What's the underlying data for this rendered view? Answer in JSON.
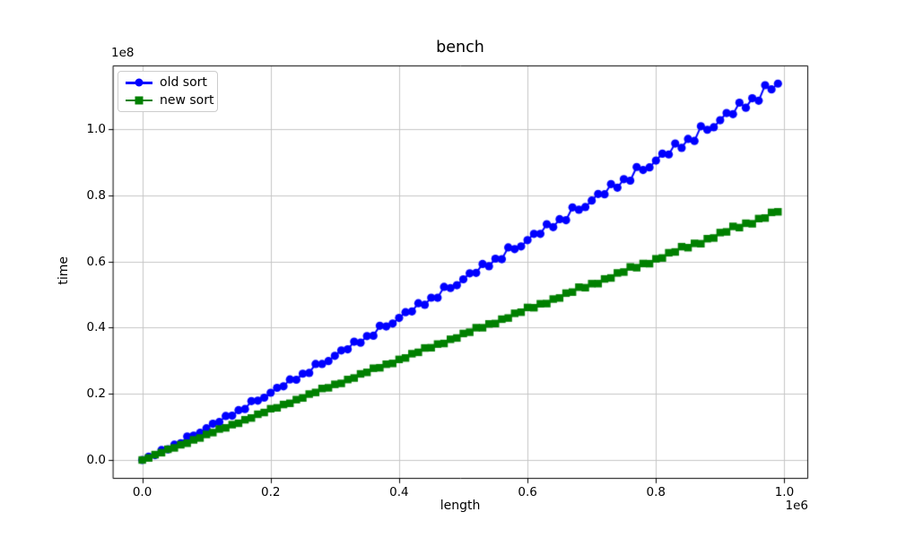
{
  "figure": {
    "title": "bench",
    "xlabel": "length",
    "ylabel": "time",
    "x_offset_label": "1e6",
    "y_offset_label": "1e8",
    "background_color": "#ffffff",
    "grid_color": "#c6c6c6",
    "spine_color": "#000000"
  },
  "legend": {
    "position": "upper left",
    "items": [
      {
        "label": "old sort",
        "color": "#0000ff",
        "marker": "circle"
      },
      {
        "label": "new sort",
        "color": "#008000",
        "marker": "square"
      }
    ]
  },
  "chart_data": {
    "type": "line",
    "title": "bench",
    "xlabel": "length",
    "ylabel": "time",
    "grid": true,
    "legend_position": "upper left",
    "x_scale": 1000000,
    "y_scale": 100000000,
    "xlim": [
      -0.0455,
      1.0357
    ],
    "ylim": [
      -0.0542,
      1.1924
    ],
    "x_ticks": [
      0.0,
      0.2,
      0.4,
      0.6,
      0.8,
      1.0
    ],
    "x_tick_labels": [
      "0.0",
      "0.2",
      "0.4",
      "0.6",
      "0.8",
      "1.0"
    ],
    "y_ticks": [
      0.0,
      0.2,
      0.4,
      0.6,
      0.8,
      1.0
    ],
    "y_tick_labels": [
      "0.0",
      "0.2",
      "0.4",
      "0.6",
      "0.8",
      "1.0"
    ],
    "x": [
      0.0,
      0.01,
      0.02,
      0.03,
      0.04,
      0.05,
      0.06,
      0.07,
      0.08,
      0.09,
      0.1,
      0.11,
      0.12,
      0.13,
      0.14,
      0.15,
      0.16,
      0.17,
      0.18,
      0.19,
      0.2,
      0.21,
      0.22,
      0.23,
      0.24,
      0.25,
      0.26,
      0.27,
      0.28,
      0.29,
      0.3,
      0.31,
      0.32,
      0.33,
      0.34,
      0.35,
      0.36,
      0.37,
      0.38,
      0.39,
      0.4,
      0.41,
      0.42,
      0.43,
      0.44,
      0.45,
      0.46,
      0.47,
      0.48,
      0.49,
      0.5,
      0.51,
      0.52,
      0.53,
      0.54,
      0.55,
      0.56,
      0.57,
      0.58,
      0.59,
      0.6,
      0.61,
      0.62,
      0.63,
      0.64,
      0.65,
      0.66,
      0.67,
      0.68,
      0.69,
      0.7,
      0.71,
      0.72,
      0.73,
      0.74,
      0.75,
      0.76,
      0.77,
      0.78,
      0.79,
      0.8,
      0.81,
      0.82,
      0.83,
      0.84,
      0.85,
      0.86,
      0.87,
      0.88,
      0.89,
      0.9,
      0.91,
      0.92,
      0.93,
      0.94,
      0.95,
      0.96,
      0.97,
      0.98,
      0.99
    ],
    "series": [
      {
        "name": "old sort",
        "color": "#0000ff",
        "marker": "circle",
        "values": [
          0.0,
          0.0102,
          0.0148,
          0.0301,
          0.0321,
          0.0464,
          0.0506,
          0.0709,
          0.0737,
          0.0823,
          0.0958,
          0.1096,
          0.1146,
          0.1331,
          0.134,
          0.1506,
          0.1541,
          0.1779,
          0.1794,
          0.1883,
          0.2032,
          0.2182,
          0.2226,
          0.2434,
          0.2425,
          0.2608,
          0.2632,
          0.2901,
          0.2901,
          0.2989,
          0.3149,
          0.3311,
          0.3344,
          0.3574,
          0.3546,
          0.3745,
          0.3756,
          0.4055,
          0.4037,
          0.4125,
          0.4294,
          0.4466,
          0.4489,
          0.4739,
          0.4691,
          0.4905,
          0.4902,
          0.5231,
          0.5196,
          0.5282,
          0.5461,
          0.5642,
          0.5654,
          0.5924,
          0.5856,
          0.6084,
          0.6068,
          0.6425,
          0.6372,
          0.6455,
          0.6644,
          0.6835,
          0.6835,
          0.7125,
          0.7036,
          0.7278,
          0.7248,
          0.7634,
          0.7562,
          0.7643,
          0.7841,
          0.8041,
          0.803,
          0.8339,
          0.8229,
          0.8486,
          0.8441,
          0.8855,
          0.8766,
          0.8843,
          0.905,
          0.9258,
          0.9235,
          0.9564,
          0.9433,
          0.9704,
          0.9644,
          1.0087,
          0.998,
          1.0055,
          1.027,
          1.0487,
          1.0451,
          1.0799,
          1.0646,
          1.0932,
          1.0858,
          1.1328,
          1.1202,
          1.1375
        ]
      },
      {
        "name": "new sort",
        "color": "#008000",
        "marker": "square",
        "values": [
          0.0,
          0.0061,
          0.0162,
          0.0221,
          0.0324,
          0.0366,
          0.046,
          0.0507,
          0.0608,
          0.0665,
          0.0772,
          0.0828,
          0.0936,
          0.0971,
          0.1068,
          0.111,
          0.1216,
          0.1269,
          0.1382,
          0.1435,
          0.1549,
          0.1576,
          0.1677,
          0.1713,
          0.1824,
          0.1874,
          0.1992,
          0.2041,
          0.2161,
          0.2182,
          0.2286,
          0.2315,
          0.2432,
          0.2478,
          0.2602,
          0.2648,
          0.2773,
          0.2787,
          0.2894,
          0.2918,
          0.304,
          0.3083,
          0.3212,
          0.3254,
          0.3386,
          0.3392,
          0.3503,
          0.3521,
          0.3648,
          0.3687,
          0.3823,
          0.3861,
          0.3998,
          0.3997,
          0.4112,
          0.4124,
          0.4256,
          0.4291,
          0.4433,
          0.4467,
          0.461,
          0.4602,
          0.4721,
          0.4727,
          0.4864,
          0.4896,
          0.5043,
          0.5074,
          0.5223,
          0.5207,
          0.5329,
          0.533,
          0.5472,
          0.5501,
          0.5653,
          0.568,
          0.5835,
          0.5812,
          0.5938,
          0.5933,
          0.608,
          0.6105,
          0.6263,
          0.6287,
          0.6447,
          0.6417,
          0.6547,
          0.6536,
          0.6688,
          0.6709,
          0.6873,
          0.6894,
          0.706,
          0.7023,
          0.7155,
          0.7139,
          0.7296,
          0.7313,
          0.7483,
          0.75
        ]
      }
    ]
  }
}
